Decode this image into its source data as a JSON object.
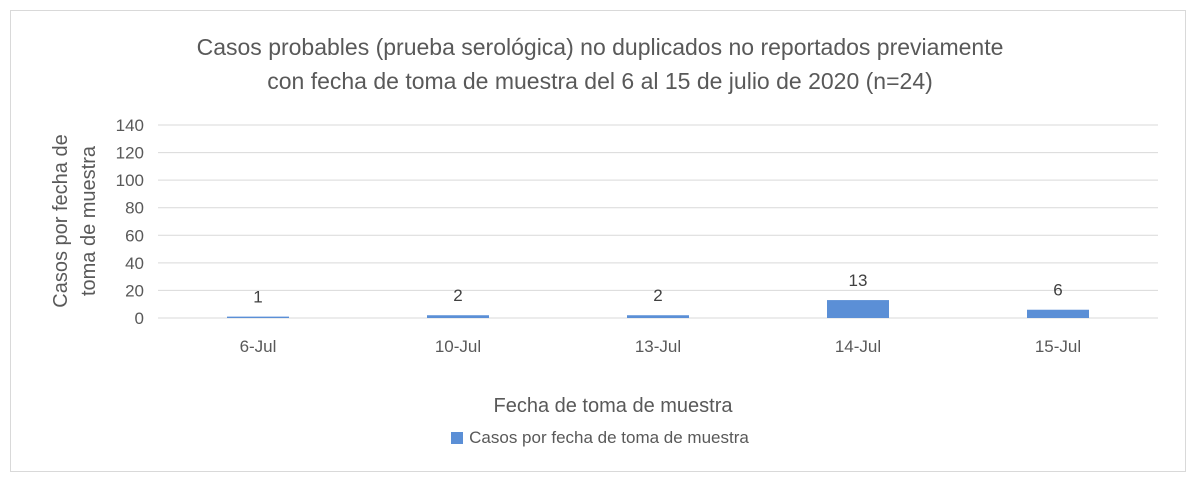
{
  "chart_data": {
    "type": "bar",
    "title_lines": [
      "Casos probables (prueba serológica) no duplicados no reportados previamente",
      "con fecha de toma de muestra del 6 al 15 de julio de 2020 (n=24)"
    ],
    "ylabel_lines": [
      "Casos por fecha de",
      "toma de muestra"
    ],
    "xlabel": "Fecha de toma de muestra",
    "categories": [
      "6-Jul",
      "10-Jul",
      "13-Jul",
      "14-Jul",
      "15-Jul"
    ],
    "series": [
      {
        "name": "Casos por fecha de toma de muestra",
        "values": [
          1,
          2,
          2,
          13,
          6
        ],
        "color": "#5b8fd6"
      }
    ],
    "ylim": [
      0,
      140
    ],
    "yticks": [
      0,
      20,
      40,
      60,
      80,
      100,
      120,
      140
    ],
    "grid": true,
    "legend_position": "bottom",
    "data_labels": true
  }
}
